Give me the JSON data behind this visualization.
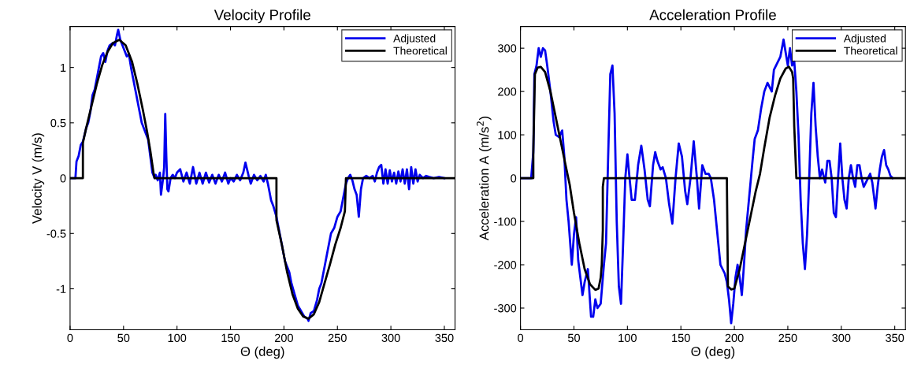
{
  "chart_data": [
    {
      "type": "line",
      "title": "Velocity Profile",
      "xlabel": "Θ (deg)",
      "ylabel": "Velocity V (m/s)",
      "xlim": [
        0,
        360
      ],
      "ylim": [
        -1.37,
        1.37
      ],
      "xticks": [
        0,
        50,
        100,
        150,
        200,
        250,
        300,
        350
      ],
      "yticks": [
        -1,
        -0.5,
        0,
        0.5,
        1
      ],
      "legend": "top right",
      "grid": false,
      "series": [
        {
          "name": "Adjusted",
          "color": "#0000ee",
          "x": [
            0,
            5,
            6,
            8,
            10,
            12,
            15,
            17,
            19,
            21,
            23,
            25,
            27,
            29,
            31,
            33,
            35,
            37,
            40,
            42,
            44,
            45,
            47,
            49,
            51,
            53,
            55,
            57,
            59,
            61,
            63,
            65,
            67,
            69,
            71,
            73,
            75,
            77,
            79,
            80,
            82,
            84,
            85,
            87,
            88,
            89,
            90,
            91,
            92,
            94,
            96,
            98,
            100,
            103,
            106,
            109,
            112,
            115,
            118,
            121,
            124,
            127,
            130,
            133,
            136,
            139,
            142,
            145,
            148,
            150,
            153,
            156,
            159,
            162,
            164,
            167,
            169,
            172,
            175,
            178,
            181,
            183,
            185,
            188,
            190,
            193,
            195,
            198,
            201,
            203,
            205,
            207,
            210,
            213,
            216,
            219,
            222,
            223,
            225,
            228,
            231,
            233,
            235,
            238,
            241,
            244,
            247,
            250,
            253,
            256,
            258,
            260,
            262,
            264,
            266,
            268,
            270,
            272,
            274,
            277,
            280,
            283,
            285,
            287,
            289,
            291,
            293,
            295,
            297,
            299,
            301,
            303,
            305,
            307,
            309,
            311,
            313,
            315,
            317,
            319,
            321,
            323,
            325,
            327,
            330,
            333,
            336,
            340,
            345,
            350
          ],
          "values": [
            0,
            0,
            0.15,
            0.2,
            0.3,
            0.33,
            0.45,
            0.5,
            0.6,
            0.75,
            0.8,
            0.9,
            1.0,
            1.1,
            1.13,
            1.05,
            1.15,
            1.2,
            1.22,
            1.2,
            1.3,
            1.34,
            1.25,
            1.2,
            1.15,
            1.1,
            1.12,
            1.0,
            0.9,
            0.8,
            0.7,
            0.6,
            0.5,
            0.45,
            0.4,
            0.35,
            0.2,
            0.05,
            0,
            0.03,
            -0.02,
            0.05,
            -0.15,
            0,
            0.1,
            0.58,
            0.2,
            -0.1,
            -0.12,
            0,
            0.03,
            0,
            0.05,
            0.08,
            -0.03,
            0.05,
            -0.05,
            0.1,
            -0.05,
            0.05,
            -0.05,
            0.05,
            -0.04,
            0.03,
            -0.05,
            0.03,
            -0.03,
            0.05,
            -0.05,
            0,
            -0.03,
            0.03,
            -0.02,
            0.05,
            0.14,
            0.02,
            -0.05,
            0.03,
            -0.02,
            0.02,
            -0.03,
            0.03,
            -0.05,
            -0.2,
            -0.25,
            -0.35,
            -0.45,
            -0.6,
            -0.75,
            -0.8,
            -0.85,
            -0.95,
            -1.05,
            -1.15,
            -1.2,
            -1.25,
            -1.27,
            -1.29,
            -1.22,
            -1.2,
            -1.1,
            -1.0,
            -0.95,
            -0.8,
            -0.65,
            -0.5,
            -0.45,
            -0.35,
            -0.3,
            -0.15,
            -0.05,
            0,
            0.03,
            -0.02,
            -0.1,
            -0.15,
            -0.35,
            -0.1,
            0,
            0.02,
            0,
            0.02,
            -0.03,
            0.05,
            0.1,
            0.12,
            -0.05,
            0.08,
            -0.05,
            0.07,
            -0.03,
            0.05,
            -0.05,
            0.06,
            -0.03,
            0.08,
            -0.05,
            0.08,
            -0.1,
            0.1,
            -0.05,
            0.08,
            -0.03,
            0.03,
            0,
            0.02,
            0.01,
            0,
            0.01,
            0
          ]
        },
        {
          "name": "Theoretical",
          "color": "#000000",
          "x": [
            0,
            12,
            12,
            15,
            20,
            25,
            30,
            35,
            40,
            46,
            52,
            58,
            63,
            68,
            72,
            75,
            78,
            79,
            193,
            193,
            198,
            203,
            208,
            213,
            218,
            223,
            228,
            233,
            238,
            243,
            248,
            253,
            257,
            258,
            360
          ],
          "values": [
            0,
            0,
            0.32,
            0.45,
            0.65,
            0.85,
            1.02,
            1.14,
            1.22,
            1.25,
            1.2,
            1.05,
            0.85,
            0.62,
            0.42,
            0.25,
            0.05,
            0,
            0,
            -0.38,
            -0.6,
            -0.85,
            -1.05,
            -1.18,
            -1.25,
            -1.27,
            -1.23,
            -1.12,
            -0.95,
            -0.78,
            -0.6,
            -0.45,
            -0.3,
            0,
            0
          ]
        }
      ]
    },
    {
      "type": "line",
      "title": "Acceleration Profile",
      "xlabel": "Θ (deg)",
      "ylabel": "Acceleration A (m/s$^{2}$)",
      "xlim": [
        0,
        360
      ],
      "ylim": [
        -350,
        350
      ],
      "xticks": [
        0,
        50,
        100,
        150,
        200,
        250,
        300,
        350
      ],
      "yticks": [
        -300,
        -200,
        -100,
        0,
        100,
        200,
        300
      ],
      "legend": "top right",
      "grid": false,
      "series": [
        {
          "name": "Adjusted",
          "color": "#0000ee",
          "x": [
            0,
            10,
            12,
            13,
            15,
            17,
            19,
            21,
            23,
            25,
            28,
            31,
            33,
            36,
            39,
            41,
            43,
            45,
            48,
            50,
            52,
            54,
            56,
            58,
            60,
            63,
            66,
            68,
            70,
            72,
            75,
            78,
            80,
            82,
            84,
            86,
            88,
            90,
            92,
            94,
            96,
            98,
            100,
            102,
            104,
            107,
            110,
            113,
            116,
            119,
            121,
            124,
            126,
            128,
            131,
            133,
            136,
            139,
            142,
            145,
            148,
            151,
            154,
            156,
            159,
            162,
            165,
            167,
            170,
            173,
            176,
            178,
            181,
            183,
            185,
            187,
            189,
            191,
            193,
            195,
            197,
            199,
            201,
            203,
            205,
            207,
            209,
            211,
            214,
            217,
            219,
            222,
            225,
            228,
            231,
            235,
            237,
            240,
            243,
            246,
            248,
            250,
            252,
            254,
            256,
            258,
            260,
            262,
            264,
            266,
            268,
            270,
            272,
            274,
            276,
            278,
            280,
            282,
            285,
            287,
            289,
            291,
            293,
            295,
            297,
            299,
            301,
            303,
            305,
            307,
            309,
            311,
            313,
            315,
            317,
            319,
            321,
            323,
            325,
            327,
            329,
            332,
            334,
            336,
            338,
            340,
            342,
            344,
            346,
            348
          ],
          "values": [
            0,
            0,
            60,
            240,
            260,
            300,
            280,
            300,
            295,
            260,
            200,
            130,
            100,
            95,
            110,
            50,
            -50,
            -100,
            -200,
            -130,
            -90,
            -190,
            -230,
            -270,
            -240,
            -210,
            -320,
            -320,
            -280,
            -300,
            -290,
            -200,
            -150,
            50,
            240,
            260,
            150,
            -100,
            -250,
            -290,
            -150,
            0,
            55,
            0,
            -50,
            -50,
            30,
            75,
            20,
            -50,
            -65,
            30,
            60,
            40,
            20,
            25,
            0,
            -60,
            -105,
            0,
            80,
            50,
            -30,
            -60,
            0,
            85,
            0,
            -70,
            30,
            10,
            10,
            0,
            -50,
            -100,
            -150,
            -200,
            -210,
            -220,
            -240,
            -280,
            -335,
            -290,
            -230,
            -200,
            -230,
            -270,
            -200,
            -120,
            -40,
            40,
            90,
            110,
            160,
            200,
            220,
            200,
            250,
            265,
            280,
            320,
            290,
            260,
            300,
            260,
            270,
            200,
            100,
            -50,
            -150,
            -210,
            -130,
            0,
            150,
            220,
            120,
            50,
            0,
            20,
            -10,
            40,
            40,
            0,
            -80,
            -90,
            0,
            80,
            0,
            -50,
            -70,
            0,
            30,
            0,
            -20,
            30,
            30,
            0,
            -20,
            -10,
            0,
            10,
            -10,
            -70,
            -20,
            20,
            50,
            65,
            30,
            20,
            5,
            0
          ]
        },
        {
          "name": "Theoretical",
          "color": "#000000",
          "x": [
            0,
            12,
            12,
            13,
            13.5,
            16,
            19,
            23,
            28,
            33,
            38,
            43,
            46,
            50,
            55,
            60,
            65,
            70,
            73,
            75,
            76,
            77,
            77,
            78,
            193,
            194,
            197,
            200,
            205,
            210,
            215,
            220,
            224,
            228,
            233,
            238,
            243,
            248,
            251,
            254,
            255,
            256,
            258,
            360
          ],
          "values": [
            0,
            0,
            60,
            180,
            240,
            255,
            257,
            245,
            200,
            140,
            80,
            20,
            -15,
            -80,
            -150,
            -210,
            -245,
            -258,
            -255,
            -230,
            -200,
            -120,
            -20,
            0,
            0,
            -250,
            -257,
            -255,
            -210,
            -150,
            -90,
            -30,
            10,
            70,
            140,
            190,
            230,
            253,
            257,
            245,
            230,
            120,
            0,
            0
          ]
        }
      ]
    }
  ]
}
